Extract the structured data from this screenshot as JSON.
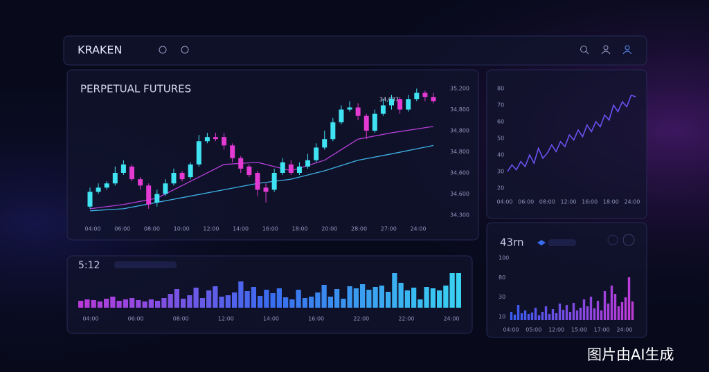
{
  "header": {
    "brand": "KRAKEN"
  },
  "main_panel": {
    "title": "PERPETUAL FUTURES",
    "price_label": "34,687",
    "y_labels": [
      "35,200",
      "34,800",
      "34,800",
      "34,800",
      "34,600",
      "34,600",
      "34,300"
    ],
    "x_labels": [
      "04:00",
      "06:00",
      "08:00",
      "10:00",
      "12:00",
      "14:00",
      "16:00",
      "18:00",
      "20:00",
      "28:00",
      "27:00",
      "24:00"
    ],
    "ylim": [
      0,
      6
    ],
    "up_color": "#3fe3f2",
    "down_color": "#e23ad2",
    "candles": [
      [
        0.4,
        1.1,
        1.3,
        0.3
      ],
      [
        1.1,
        1.3,
        1.5,
        1.0
      ],
      [
        1.3,
        1.5,
        1.6,
        1.2
      ],
      [
        1.5,
        2.0,
        2.3,
        1.4
      ],
      [
        2.0,
        2.4,
        2.6,
        1.9
      ],
      [
        2.3,
        1.7,
        2.4,
        1.6
      ],
      [
        1.7,
        1.4,
        1.8,
        1.2
      ],
      [
        1.4,
        0.5,
        1.5,
        0.3
      ],
      [
        0.6,
        1.0,
        1.2,
        0.4
      ],
      [
        1.0,
        1.5,
        1.7,
        0.9
      ],
      [
        1.5,
        2.0,
        2.2,
        1.4
      ],
      [
        2.0,
        1.7,
        2.1,
        1.6
      ],
      [
        1.8,
        2.4,
        2.5,
        1.7
      ],
      [
        2.4,
        3.5,
        3.8,
        2.3
      ],
      [
        3.5,
        3.7,
        3.9,
        3.4
      ],
      [
        3.7,
        3.6,
        3.9,
        3.5
      ],
      [
        3.7,
        3.3,
        3.9,
        3.1
      ],
      [
        3.3,
        2.7,
        3.4,
        2.5
      ],
      [
        2.7,
        2.2,
        2.8,
        2.0
      ],
      [
        2.3,
        1.9,
        2.4,
        1.8
      ],
      [
        2.0,
        1.2,
        2.1,
        0.9
      ],
      [
        1.3,
        1.1,
        1.5,
        0.6
      ],
      [
        1.2,
        2.0,
        2.2,
        1.1
      ],
      [
        2.0,
        2.5,
        2.7,
        1.9
      ],
      [
        2.4,
        2.0,
        2.6,
        1.9
      ],
      [
        2.0,
        2.3,
        2.5,
        1.9
      ],
      [
        2.3,
        2.6,
        2.9,
        2.2
      ],
      [
        2.6,
        3.2,
        3.4,
        2.5
      ],
      [
        3.2,
        3.6,
        4.0,
        3.1
      ],
      [
        3.6,
        4.4,
        4.6,
        3.5
      ],
      [
        4.4,
        5.0,
        5.2,
        4.3
      ],
      [
        5.0,
        5.1,
        5.4,
        4.9
      ],
      [
        5.1,
        4.7,
        5.3,
        4.5
      ],
      [
        4.7,
        4.0,
        4.8,
        3.6
      ],
      [
        4.0,
        4.8,
        5.0,
        3.9
      ],
      [
        4.8,
        5.2,
        5.5,
        4.7
      ],
      [
        5.2,
        5.5,
        5.7,
        5.0
      ],
      [
        5.5,
        5.0,
        5.6,
        4.8
      ],
      [
        5.0,
        5.5,
        5.7,
        4.9
      ],
      [
        5.5,
        5.8,
        6.0,
        5.4
      ],
      [
        5.8,
        5.6,
        5.9,
        5.4
      ],
      [
        5.6,
        5.4,
        5.8,
        5.3
      ]
    ],
    "ma_x": [
      0,
      4,
      8,
      12,
      16,
      20,
      24,
      28,
      32,
      36,
      41
    ],
    "ma": [
      {
        "color": "#b53fd8",
        "values": [
          0.3,
          0.5,
          0.8,
          1.6,
          2.4,
          2.5,
          2.1,
          2.6,
          3.6,
          3.9,
          4.2
        ]
      },
      {
        "color": "#3fb2e6",
        "values": [
          0.2,
          0.3,
          0.6,
          0.9,
          1.2,
          1.5,
          1.7,
          2.1,
          2.6,
          2.9,
          3.3
        ]
      }
    ]
  },
  "line_panel": {
    "yticks": [
      80,
      70,
      60,
      50,
      40,
      30,
      20
    ],
    "ylim": [
      20,
      80
    ],
    "x_labels": [
      "04:00",
      "06:00",
      "08:00",
      "12:00",
      "16:00",
      "18:00",
      "24:00"
    ],
    "color": "#6a52f2",
    "values": [
      30,
      34,
      31,
      36,
      33,
      40,
      35,
      44,
      38,
      41,
      46,
      42,
      48,
      45,
      52,
      49,
      55,
      51,
      58,
      54,
      60,
      57,
      64,
      61,
      70,
      66,
      72,
      69,
      76,
      75
    ]
  },
  "volume_panel": {
    "label": "5:12",
    "x_labels": [
      "04:00",
      "06:00",
      "08:00",
      "12:00",
      "14:00",
      "16:00",
      "22:00",
      "22:00",
      "24:00"
    ],
    "ylim": [
      0,
      55
    ],
    "colors": [
      "#b83ad8",
      "#3a6cf0",
      "#3ad2f2"
    ],
    "values": [
      10,
      12,
      11,
      9,
      13,
      16,
      10,
      12,
      14,
      11,
      9,
      12,
      10,
      14,
      20,
      27,
      13,
      18,
      29,
      14,
      25,
      31,
      16,
      18,
      22,
      38,
      24,
      30,
      17,
      26,
      21,
      28,
      15,
      12,
      26,
      14,
      16,
      22,
      33,
      16,
      27,
      13,
      31,
      28,
      34,
      26,
      30,
      32,
      23,
      50,
      36,
      25,
      29,
      12,
      30,
      28,
      25,
      32,
      50,
      50
    ]
  },
  "bars_panel": {
    "label": "43rn",
    "y_labels": [
      "100",
      "80",
      "30",
      "10"
    ],
    "x_labels": [
      "04:00",
      "05:00",
      "12:00",
      "15:00",
      "17:00",
      "24:00"
    ],
    "ylim": [
      0,
      65
    ],
    "colors": [
      "#3a5cf0",
      "#c03ad8"
    ],
    "values": [
      12,
      8,
      22,
      10,
      14,
      9,
      11,
      18,
      7,
      12,
      20,
      9,
      16,
      10,
      24,
      15,
      22,
      12,
      25,
      14,
      18,
      30,
      20,
      34,
      17,
      28,
      14,
      42,
      24,
      50,
      38,
      20,
      26,
      33,
      62,
      27
    ]
  },
  "watermark": "图片由AI生成"
}
